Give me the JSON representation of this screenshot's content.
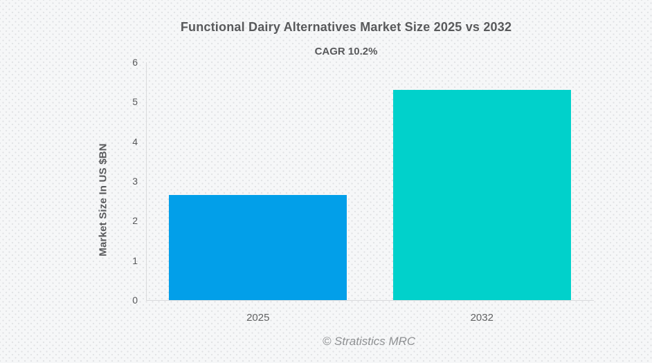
{
  "chart_data": {
    "type": "bar",
    "title": "Functional Dairy Alternatives Market Size 2025 vs 2032",
    "subtitle": "CAGR 10.2%",
    "categories": [
      "2025",
      "2032"
    ],
    "values": [
      2.65,
      5.3
    ],
    "bar_colors": [
      "#029fe9",
      "#01d1cb"
    ],
    "xlabel": "",
    "ylabel": "Market Size In US $BN",
    "ylim": [
      0,
      6
    ],
    "yticks": [
      0,
      1,
      2,
      3,
      4,
      5,
      6
    ],
    "grid": false,
    "legend": false
  },
  "footer": {
    "text": "© Stratistics MRC"
  },
  "colors": {
    "background": "#f6f7f8",
    "dot_pattern": "#e1e2e4",
    "axis_line": "#d9dadc",
    "text": "#58595b",
    "watermark": "#8f9193",
    "bar_2025": "#029fe9",
    "bar_2032": "#01d1cb"
  }
}
